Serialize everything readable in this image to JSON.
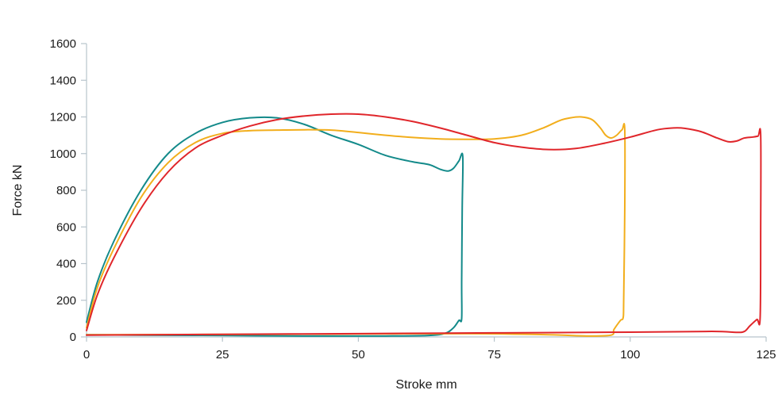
{
  "chart_data": {
    "type": "line",
    "title": "",
    "xlabel": "Stroke mm",
    "ylabel": "Force kN",
    "xlim": [
      0,
      125
    ],
    "ylim": [
      0,
      1600
    ],
    "xticks": [
      0,
      25,
      50,
      75,
      100,
      125
    ],
    "yticks": [
      0,
      200,
      400,
      600,
      800,
      1000,
      1200,
      1400,
      1600
    ],
    "grid": false,
    "legend": "none",
    "series": [
      {
        "color": "#138a8a",
        "points": [
          [
            0,
            80
          ],
          [
            2,
            300
          ],
          [
            5,
            520
          ],
          [
            10,
            800
          ],
          [
            15,
            1000
          ],
          [
            20,
            1110
          ],
          [
            25,
            1170
          ],
          [
            30,
            1195
          ],
          [
            35,
            1195
          ],
          [
            40,
            1160
          ],
          [
            45,
            1100
          ],
          [
            50,
            1050
          ],
          [
            55,
            990
          ],
          [
            60,
            955
          ],
          [
            63,
            940
          ],
          [
            65,
            915
          ],
          [
            66.5,
            905
          ],
          [
            67.5,
            920
          ],
          [
            68.5,
            960
          ],
          [
            69.2,
            985
          ],
          [
            69.1,
            700
          ],
          [
            69,
            300
          ],
          [
            69,
            100
          ],
          [
            68.5,
            90
          ],
          [
            67.5,
            50
          ],
          [
            66,
            20
          ],
          [
            63,
            8
          ],
          [
            55,
            5
          ],
          [
            40,
            5
          ],
          [
            25,
            8
          ],
          [
            10,
            10
          ],
          [
            0,
            12
          ]
        ]
      },
      {
        "color": "#f2ae1c",
        "points": [
          [
            0,
            50
          ],
          [
            2,
            270
          ],
          [
            5,
            480
          ],
          [
            10,
            760
          ],
          [
            15,
            950
          ],
          [
            20,
            1060
          ],
          [
            25,
            1110
          ],
          [
            30,
            1125
          ],
          [
            35,
            1128
          ],
          [
            40,
            1130
          ],
          [
            45,
            1128
          ],
          [
            50,
            1115
          ],
          [
            55,
            1100
          ],
          [
            60,
            1088
          ],
          [
            65,
            1080
          ],
          [
            70,
            1078
          ],
          [
            75,
            1080
          ],
          [
            80,
            1100
          ],
          [
            84,
            1140
          ],
          [
            87,
            1180
          ],
          [
            89,
            1195
          ],
          [
            91,
            1200
          ],
          [
            93,
            1185
          ],
          [
            94.5,
            1140
          ],
          [
            95.5,
            1100
          ],
          [
            96.5,
            1085
          ],
          [
            97.5,
            1100
          ],
          [
            98.5,
            1130
          ],
          [
            99,
            1130
          ],
          [
            99,
            700
          ],
          [
            98.8,
            200
          ],
          [
            98.7,
            105
          ],
          [
            98.2,
            90
          ],
          [
            97,
            40
          ],
          [
            96.5,
            10
          ],
          [
            92,
            5
          ],
          [
            85,
            12
          ],
          [
            70,
            18
          ],
          [
            50,
            16
          ],
          [
            30,
            14
          ],
          [
            0,
            12
          ]
        ]
      },
      {
        "color": "#e0262b",
        "points": [
          [
            0,
            35
          ],
          [
            2,
            230
          ],
          [
            5,
            430
          ],
          [
            10,
            700
          ],
          [
            15,
            900
          ],
          [
            20,
            1030
          ],
          [
            25,
            1100
          ],
          [
            30,
            1150
          ],
          [
            35,
            1185
          ],
          [
            40,
            1205
          ],
          [
            45,
            1215
          ],
          [
            50,
            1215
          ],
          [
            55,
            1200
          ],
          [
            60,
            1175
          ],
          [
            65,
            1140
          ],
          [
            70,
            1100
          ],
          [
            75,
            1060
          ],
          [
            80,
            1035
          ],
          [
            85,
            1022
          ],
          [
            90,
            1028
          ],
          [
            95,
            1055
          ],
          [
            100,
            1090
          ],
          [
            105,
            1130
          ],
          [
            108,
            1140
          ],
          [
            110,
            1138
          ],
          [
            113,
            1120
          ],
          [
            116,
            1085
          ],
          [
            118,
            1065
          ],
          [
            119.5,
            1068
          ],
          [
            121,
            1085
          ],
          [
            122.5,
            1090
          ],
          [
            123.5,
            1095
          ],
          [
            124,
            1100
          ],
          [
            124,
            600
          ],
          [
            123.9,
            105
          ],
          [
            123.3,
            95
          ],
          [
            122,
            60
          ],
          [
            121,
            30
          ],
          [
            119.5,
            25
          ],
          [
            115,
            30
          ],
          [
            100,
            26
          ],
          [
            75,
            22
          ],
          [
            50,
            18
          ],
          [
            25,
            14
          ],
          [
            0,
            10
          ]
        ]
      }
    ]
  }
}
